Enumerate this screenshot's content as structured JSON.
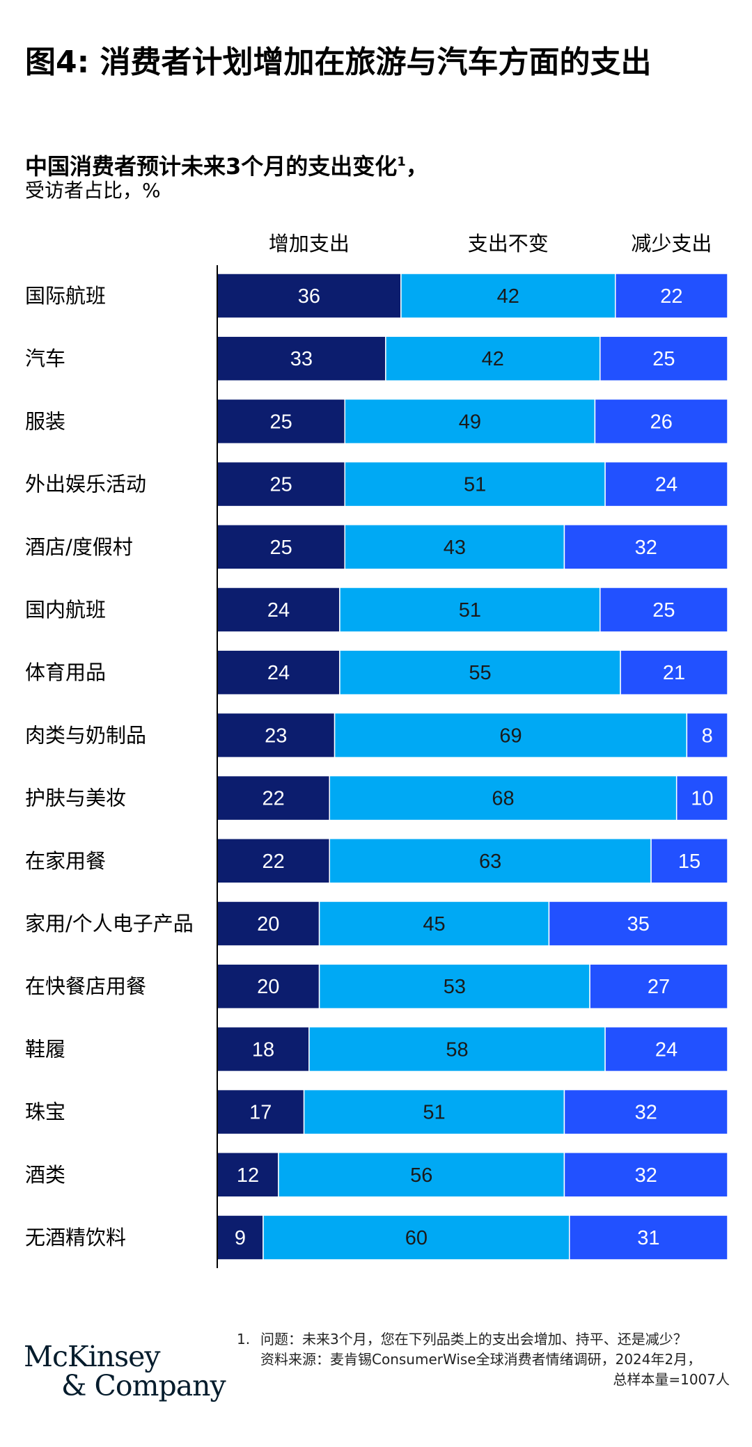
{
  "figure_title": "图4: 消费者计划增加在旅游与汽车方面的支出",
  "subtitle": "中国消费者预计未来3个月的支出变化",
  "subtitle_sup": "1",
  "subtitle_suffix": "，",
  "unit_label": "受访者占比，%",
  "colors": {
    "increase": "#0c1d6e",
    "unchanged": "#00a9f4",
    "decrease": "#2251ff",
    "axis": "#000000"
  },
  "chart_data": {
    "type": "bar",
    "orientation": "horizontal",
    "stacked": true,
    "title": "中国消费者预计未来3个月的支出变化",
    "xlabel": "",
    "ylabel": "",
    "unit": "%",
    "xlim": [
      0,
      100
    ],
    "grid": false,
    "legend": "top",
    "categories": [
      "国际航班",
      "汽车",
      "服装",
      "外出娱乐活动",
      "酒店/度假村",
      "国内航班",
      "体育用品",
      "肉类与奶制品",
      "护肤与美妆",
      "在家用餐",
      "家用/个人电子产品",
      "在快餐店用餐",
      "鞋履",
      "珠宝",
      "酒类",
      "无酒精饮料"
    ],
    "series": [
      {
        "name": "增加支出",
        "values": [
          36,
          33,
          25,
          25,
          25,
          24,
          24,
          23,
          22,
          22,
          20,
          20,
          18,
          17,
          12,
          9
        ]
      },
      {
        "name": "支出不变",
        "values": [
          42,
          42,
          49,
          51,
          43,
          51,
          55,
          69,
          68,
          63,
          45,
          53,
          58,
          51,
          56,
          60
        ]
      },
      {
        "name": "减少支出",
        "values": [
          22,
          25,
          26,
          24,
          32,
          25,
          21,
          8,
          10,
          15,
          35,
          27,
          24,
          32,
          32,
          31
        ]
      }
    ]
  },
  "footnote": {
    "number": "1.",
    "question": "问题：未来3个月，您在下列品类上的支出会增加、持平、还是减少？",
    "source": "资料来源：麦肯锡ConsumerWise全球消费者情绪调研，2024年2月，",
    "sample": "总样本量=1007人"
  },
  "logo": {
    "line1": "McKinsey",
    "line2": "& Company"
  }
}
